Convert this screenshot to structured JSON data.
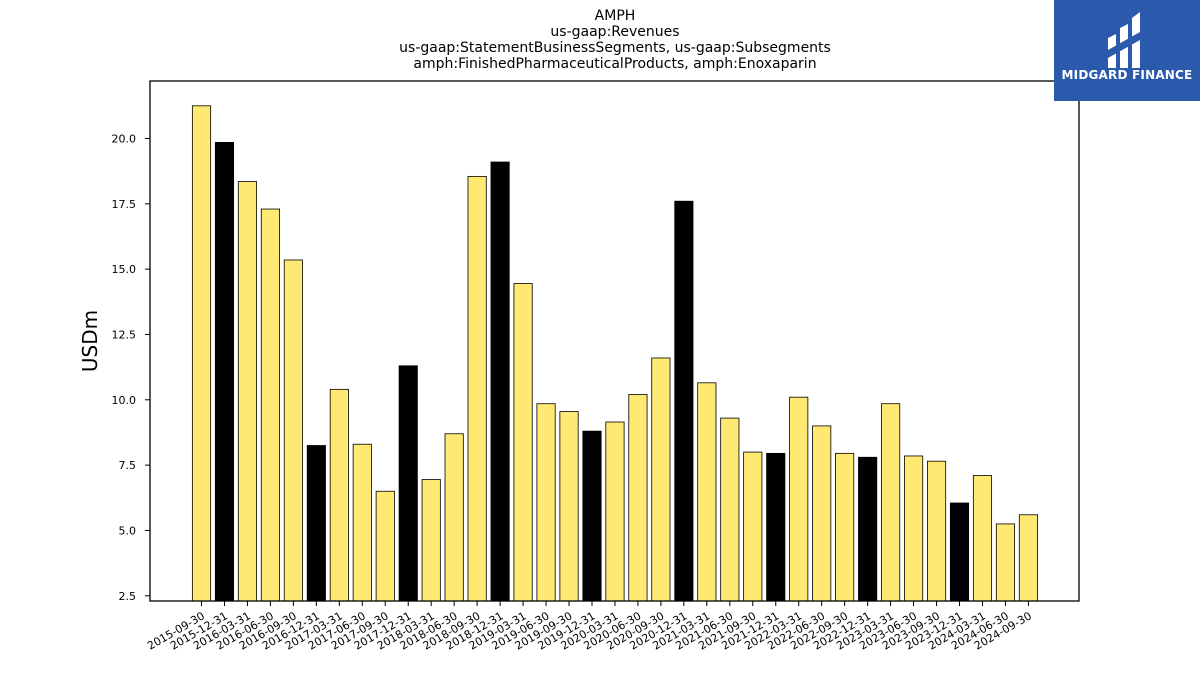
{
  "chart_data": {
    "type": "bar",
    "title_lines": [
      "AMPH",
      "us-gaap:Revenues",
      "us-gaap:StatementBusinessSegments, us-gaap:Subsegments",
      "amph:FinishedPharmaceuticalProducts, amph:Enoxaparin"
    ],
    "ylabel": "USDm",
    "xlabel": "",
    "ylim": [
      2.3,
      22.2
    ],
    "yticks": [
      2.5,
      5.0,
      7.5,
      10.0,
      12.5,
      15.0,
      17.5,
      20.0
    ],
    "categories": [
      "2015-09-30",
      "2015-12-31",
      "2016-03-31",
      "2016-06-30",
      "2016-09-30",
      "2016-12-31",
      "2017-03-31",
      "2017-06-30",
      "2017-09-30",
      "2017-12-31",
      "2018-03-31",
      "2018-06-30",
      "2018-09-30",
      "2018-12-31",
      "2019-03-31",
      "2019-06-30",
      "2019-09-30",
      "2019-12-31",
      "2020-03-31",
      "2020-06-30",
      "2020-09-30",
      "2020-12-31",
      "2021-03-31",
      "2021-06-30",
      "2021-09-30",
      "2021-12-31",
      "2022-03-31",
      "2022-06-30",
      "2022-09-30",
      "2022-12-31",
      "2023-03-31",
      "2023-06-30",
      "2023-09-30",
      "2023-12-31",
      "2024-03-31",
      "2024-06-30",
      "2024-09-30"
    ],
    "values": [
      21.25,
      19.85,
      18.35,
      17.3,
      15.35,
      8.25,
      10.4,
      8.3,
      6.5,
      11.3,
      6.95,
      8.7,
      18.55,
      19.1,
      14.45,
      9.85,
      9.55,
      8.8,
      9.15,
      10.2,
      11.6,
      17.6,
      10.65,
      9.3,
      8.0,
      7.95,
      10.1,
      9.0,
      7.95,
      7.8,
      9.85,
      7.85,
      7.65,
      6.05,
      7.1,
      5.25,
      5.6
    ],
    "bar_colors": [
      "#ffe973",
      "#000000",
      "#ffe973",
      "#ffe973",
      "#ffe973",
      "#000000",
      "#ffe973",
      "#ffe973",
      "#ffe973",
      "#000000",
      "#ffe973",
      "#ffe973",
      "#ffe973",
      "#000000",
      "#ffe973",
      "#ffe973",
      "#ffe973",
      "#000000",
      "#ffe973",
      "#ffe973",
      "#ffe973",
      "#000000",
      "#ffe973",
      "#ffe973",
      "#ffe973",
      "#000000",
      "#ffe973",
      "#ffe973",
      "#ffe973",
      "#000000",
      "#ffe973",
      "#ffe973",
      "#ffe973",
      "#000000",
      "#ffe973",
      "#ffe973",
      "#ffe973"
    ],
    "grid": false,
    "legend": "none"
  },
  "logo": {
    "text": "MIDGARD FINANCE",
    "icon": "midgard-logo-icon",
    "background": "#2b5aad"
  }
}
